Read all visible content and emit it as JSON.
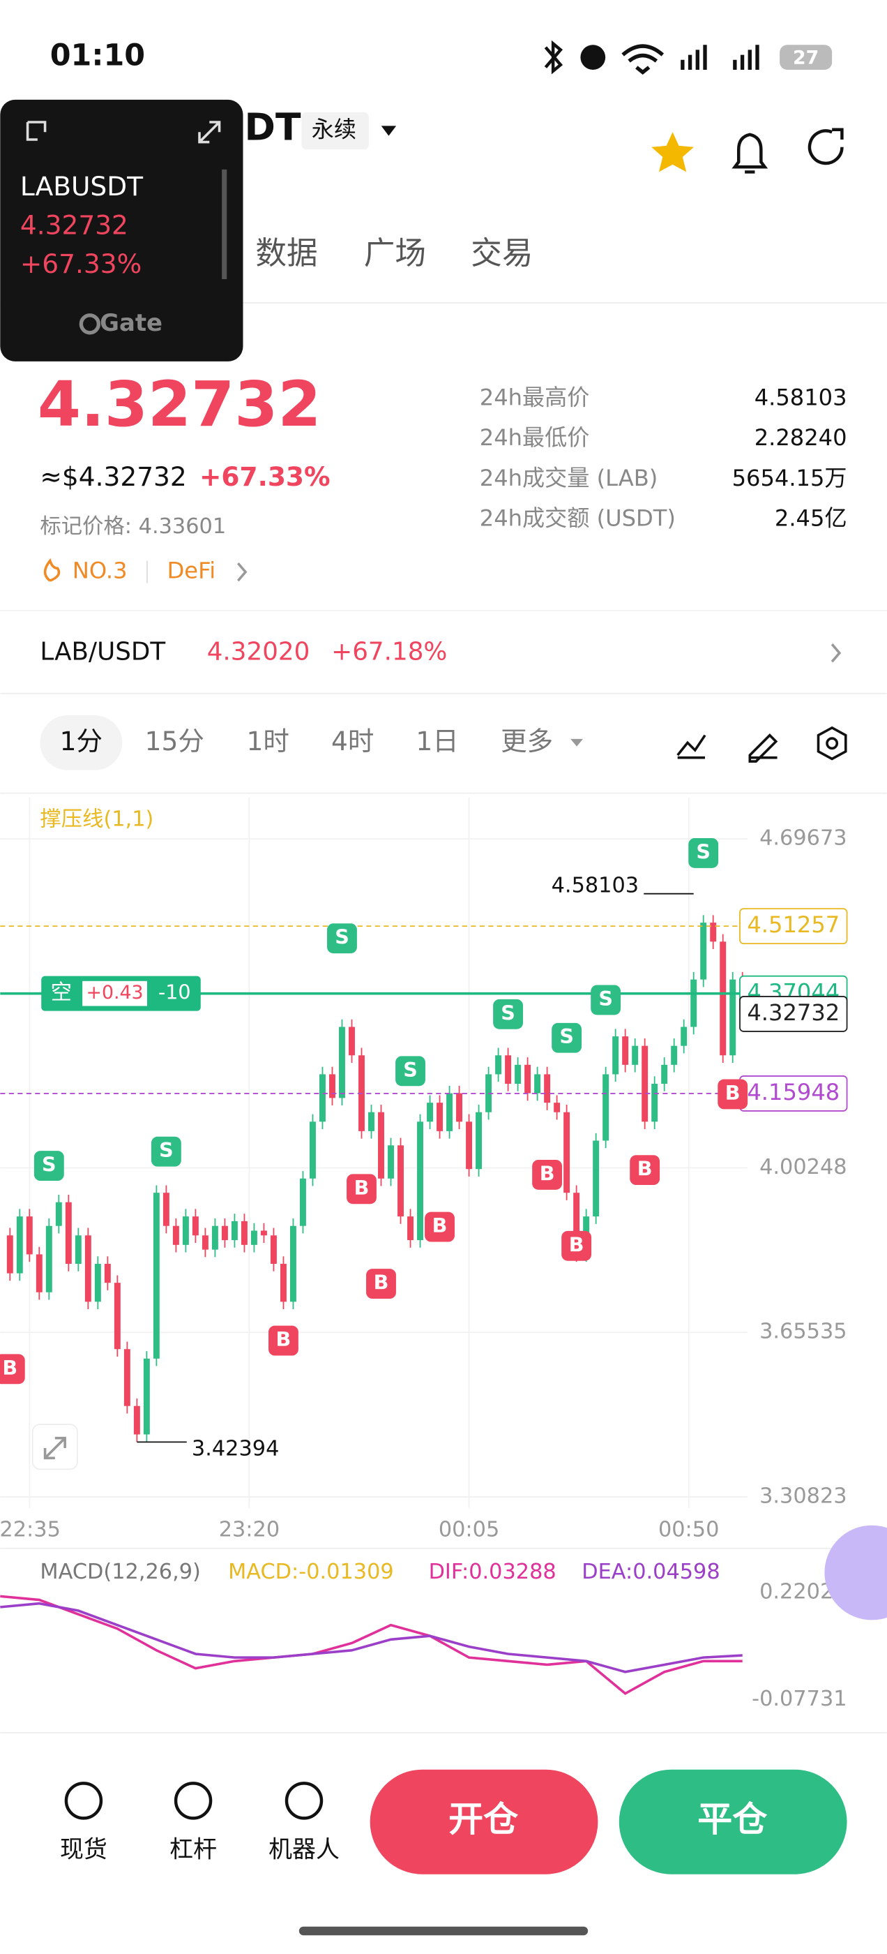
{
  "status": {
    "time": "01:10",
    "battery": "27"
  },
  "header": {
    "symbol": "LABUSDT",
    "contract": "永续",
    "tabs": [
      "数据",
      "广场",
      "交易"
    ]
  },
  "overlay": {
    "symbol": "LABUSDT",
    "price": "4.32732",
    "change": "+67.33%",
    "brand": "Gate"
  },
  "ticker": {
    "price": "4.32732",
    "usd": "≈$4.32732",
    "change": "+67.33%",
    "mark": "标记价格: 4.33601",
    "rank": "NO.3",
    "tag": "DeFi",
    "stats": [
      {
        "label": "24h最高价",
        "value": "4.58103"
      },
      {
        "label": "24h最低价",
        "value": "2.28240"
      },
      {
        "label": "24h成交量 (LAB)",
        "value": "5654.15万"
      },
      {
        "label": "24h成交额 (USDT)",
        "value": "2.45亿"
      }
    ]
  },
  "spot": {
    "pair": "LAB/USDT",
    "price": "4.32020",
    "change": "+67.18%"
  },
  "intervals": [
    "1分",
    "15分",
    "1时",
    "4时",
    "1日",
    "更多"
  ],
  "chart_data": {
    "type": "candlestick",
    "indicator": "撑压线(1,1)",
    "xlim": [
      -6,
      147
    ],
    "xticks": [
      {
        "value": 0,
        "label": "22:35"
      },
      {
        "value": 45,
        "label": "23:20"
      },
      {
        "value": 90,
        "label": "00:05"
      },
      {
        "value": 135,
        "label": "00:50"
      }
    ],
    "ylim": [
      3.285,
      4.784
    ],
    "yticks": [
      3.30823,
      3.65535,
      4.00248,
      4.69673
    ],
    "x": [
      -6,
      -4,
      -2,
      0,
      2,
      4,
      6,
      8,
      10,
      12,
      14,
      16,
      18,
      20,
      22,
      24,
      26,
      28,
      30,
      32,
      34,
      36,
      38,
      40,
      42,
      44,
      46,
      48,
      50,
      52,
      54,
      56,
      58,
      60,
      62,
      64,
      66,
      68,
      70,
      72,
      74,
      76,
      78,
      80,
      82,
      84,
      86,
      88,
      90,
      92,
      94,
      96,
      98,
      100,
      102,
      104,
      106,
      108,
      110,
      112,
      114,
      116,
      118,
      120,
      122,
      124,
      126,
      128,
      130,
      132,
      134,
      136,
      138,
      140,
      142,
      144,
      146
    ],
    "closes": [
      3.86,
      3.78,
      3.9,
      3.82,
      3.74,
      3.88,
      3.93,
      3.8,
      3.86,
      3.72,
      3.8,
      3.76,
      3.62,
      3.5,
      3.44,
      3.6,
      3.95,
      3.88,
      3.84,
      3.9,
      3.86,
      3.83,
      3.88,
      3.85,
      3.89,
      3.84,
      3.87,
      3.86,
      3.8,
      3.72,
      3.88,
      3.98,
      4.1,
      4.2,
      4.15,
      4.3,
      4.24,
      4.08,
      4.12,
      3.98,
      4.05,
      3.9,
      3.85,
      4.1,
      4.14,
      4.08,
      4.16,
      4.1,
      4.0,
      4.12,
      4.2,
      4.24,
      4.18,
      4.22,
      4.16,
      4.2,
      4.14,
      4.12,
      3.95,
      3.82,
      3.9,
      4.06,
      4.2,
      4.28,
      4.22,
      4.26,
      4.1,
      4.18,
      4.22,
      4.26,
      4.3,
      4.4,
      4.52,
      4.48,
      4.24,
      4.4,
      4.33
    ],
    "up_color": "#2dbd85",
    "down_color": "#f0455e",
    "markers": [
      {
        "side": "S",
        "x": 4,
        "price": 3.97
      },
      {
        "side": "B",
        "x": -4,
        "price": 3.62
      },
      {
        "side": "S",
        "x": 28,
        "price": 4.0
      },
      {
        "side": "B",
        "x": 52,
        "price": 3.68
      },
      {
        "side": "S",
        "x": 64,
        "price": 4.45
      },
      {
        "side": "B",
        "x": 68,
        "price": 4.0
      },
      {
        "side": "B",
        "x": 72,
        "price": 3.8
      },
      {
        "side": "S",
        "x": 78,
        "price": 4.17
      },
      {
        "side": "B",
        "x": 84,
        "price": 3.92
      },
      {
        "side": "S",
        "x": 98,
        "price": 4.29
      },
      {
        "side": "B",
        "x": 106,
        "price": 4.03
      },
      {
        "side": "S",
        "x": 110,
        "price": 4.24
      },
      {
        "side": "B",
        "x": 112,
        "price": 3.88
      },
      {
        "side": "S",
        "x": 118,
        "price": 4.32
      },
      {
        "side": "B",
        "x": 126,
        "price": 4.04
      },
      {
        "side": "S",
        "x": 138,
        "price": 4.63
      },
      {
        "side": "B",
        "x": 144,
        "price": 4.2
      }
    ],
    "high_mark": {
      "value": 4.58103,
      "x": 136
    },
    "low_mark": {
      "value": 3.42394,
      "x": 22
    },
    "price_lines": [
      {
        "value": 4.51257,
        "color": "#e8b923"
      },
      {
        "value": 4.37044,
        "color": "#1eb980"
      },
      {
        "value": 4.32732,
        "color": "#222222"
      },
      {
        "value": 4.15948,
        "color": "#b04bd0"
      }
    ],
    "position": {
      "side": "空",
      "pnl": "+0.43",
      "qty": "-10",
      "price": 4.37044
    }
  },
  "macd_data": {
    "type": "line",
    "title": "MACD(12,26,9)",
    "macd": "MACD:-0.01309",
    "dif_label": "DIF:0.03288",
    "dea_label": "DEA:0.04598",
    "ylim": [
      -0.15,
      0.317
    ],
    "yticks": [
      -0.07731,
      0.22021
    ],
    "x": [
      -6,
      2,
      10,
      18,
      26,
      34,
      42,
      50,
      58,
      66,
      74,
      82,
      90,
      98,
      106,
      114,
      122,
      130,
      138,
      146
    ],
    "series": [
      {
        "name": "DIF",
        "color": "#e0309a",
        "values": [
          0.21,
          0.2,
          0.16,
          0.12,
          0.06,
          0.01,
          0.03,
          0.04,
          0.05,
          0.08,
          0.13,
          0.1,
          0.04,
          0.03,
          0.02,
          0.03,
          -0.06,
          0.0,
          0.03,
          0.03
        ]
      },
      {
        "name": "DEA",
        "color": "#9b3fc8",
        "values": [
          0.18,
          0.19,
          0.17,
          0.13,
          0.09,
          0.05,
          0.04,
          0.04,
          0.05,
          0.06,
          0.09,
          0.1,
          0.07,
          0.05,
          0.04,
          0.03,
          0.0,
          0.02,
          0.04,
          0.046
        ]
      }
    ]
  },
  "nav": {
    "items": [
      "现货",
      "杠杆",
      "机器人"
    ],
    "open": "开仓",
    "close": "平仓"
  }
}
